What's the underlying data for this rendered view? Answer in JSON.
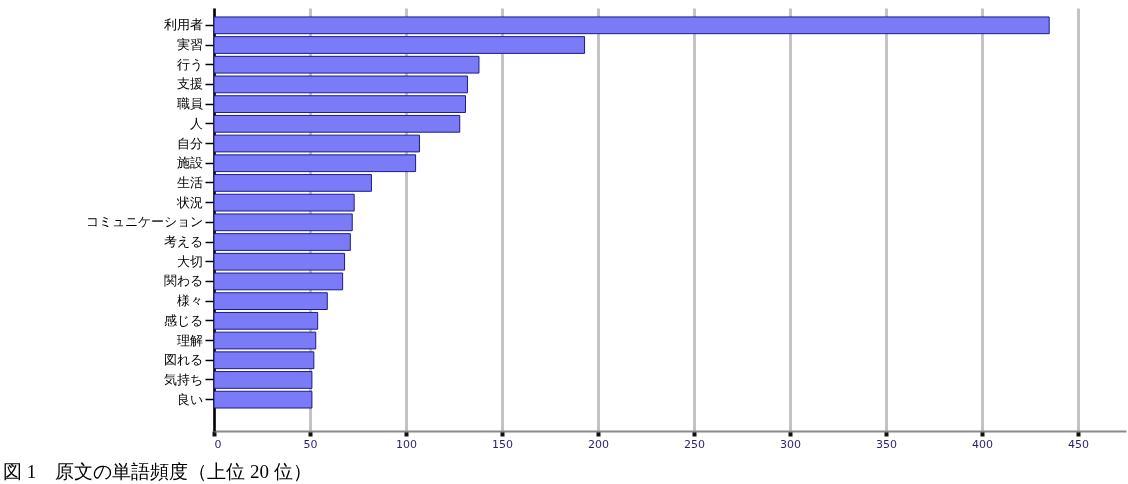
{
  "chart_data": {
    "type": "bar",
    "orientation": "horizontal",
    "title": "図 1　原文の単語頻度（上位 20 位）",
    "categories": [
      "利用者",
      "実習",
      "行う",
      "支援",
      "職員",
      "人",
      "自分",
      "施設",
      "生活",
      "状況",
      "コミュニケーション",
      "考える",
      "大切",
      "関わる",
      "様々",
      "感じる",
      "理解",
      "図れる",
      "気持ち",
      "良い"
    ],
    "values": [
      435,
      193,
      138,
      132,
      131,
      128,
      107,
      105,
      82,
      73,
      72,
      71,
      68,
      67,
      59,
      54,
      53,
      52,
      51,
      51
    ],
    "color": "#7b7bf7",
    "xlim": [
      0,
      475
    ],
    "xticks": [
      0,
      50,
      100,
      150,
      200,
      250,
      300,
      350,
      400,
      450
    ],
    "grid": "x"
  }
}
